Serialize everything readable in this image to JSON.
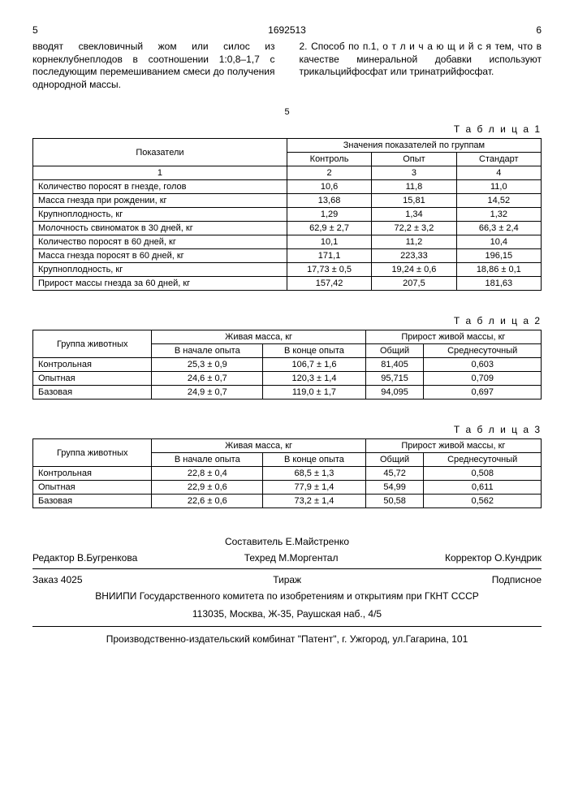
{
  "header": {
    "page_left": "5",
    "doc_id": "1692513",
    "page_right": "6",
    "mid_num": "5"
  },
  "paragraphs": {
    "left": "вводят свекловичный жом или силос из корнеклубнеплодов в соотношении 1:0,8–1,7 с последующим перемешиванием смеси до получения однородной массы.",
    "right": "2. Способ по п.1, о т л и ч а ю щ и й с я тем, что в качестве минеральной добавки используют трикальцийфосфат или тринатрийфосфат."
  },
  "table1": {
    "label": "Т а б л и ц а 1",
    "h1": "Показатели",
    "h2": "Значения показателей по группам",
    "cols": [
      "Контроль",
      "Опыт",
      "Стандарт"
    ],
    "numrow": [
      "1",
      "2",
      "3",
      "4"
    ],
    "rows": [
      [
        "Количество поросят в гнезде, голов",
        "10,6",
        "11,8",
        "11,0"
      ],
      [
        "Масса гнезда при рождении, кг",
        "13,68",
        "15,81",
        "14,52"
      ],
      [
        "Крупноплодность, кг",
        "1,29",
        "1,34",
        "1,32"
      ],
      [
        "Молочность свиноматок в 30 дней, кг",
        "62,9 ± 2,7",
        "72,2 ± 3,2",
        "66,3 ± 2,4"
      ],
      [
        "Количество поросят в 60 дней, кг",
        "10,1",
        "11,2",
        "10,4"
      ],
      [
        "Масса гнезда поросят в 60 дней, кг",
        "171,1",
        "223,33",
        "196,15"
      ],
      [
        "Крупноплодность, кг",
        "17,73 ± 0,5",
        "19,24 ± 0,6",
        "18,86 ± 0,1"
      ],
      [
        "Прирост массы гнезда за 60 дней, кг",
        "157,42",
        "207,5",
        "181,63"
      ]
    ]
  },
  "table2": {
    "label": "Т а б л и ц а 2",
    "h1": "Группа животных",
    "h2": "Живая масса, кг",
    "h3": "Прирост живой массы, кг",
    "sub": [
      "В начале опыта",
      "В конце опыта",
      "Общий",
      "Среднесуточный"
    ],
    "rows": [
      [
        "Контрольная",
        "25,3 ± 0,9",
        "106,7 ± 1,6",
        "81,405",
        "0,603"
      ],
      [
        "Опытная",
        "24,6 ± 0,7",
        "120,3 ± 1,4",
        "95,715",
        "0,709"
      ],
      [
        "Базовая",
        "24,9 ± 0,7",
        "119,0 ± 1,7",
        "94,095",
        "0,697"
      ]
    ]
  },
  "table3": {
    "label": "Т а б л и ц а 3",
    "h1": "Группа животных",
    "h2": "Живая масса, кг",
    "h3": "Прирост живой массы, кг",
    "sub": [
      "В начале опыта",
      "В конце опыта",
      "Общий",
      "Среднесуточный"
    ],
    "rows": [
      [
        "Контрольная",
        "22,8 ± 0,4",
        "68,5 ± 1,3",
        "45,72",
        "0,508"
      ],
      [
        "Опытная",
        "22,9 ± 0,6",
        "77,9 ± 1,4",
        "54,99",
        "0,611"
      ],
      [
        "Базовая",
        "22,6 ± 0,6",
        "73,2 ± 1,4",
        "50,58",
        "0,562"
      ]
    ]
  },
  "footer": {
    "compiler": "Составитель  Е.Майстренко",
    "editor": "Редактор  В.Бугренкова",
    "tech": "Техред М.Моргентал",
    "corrector": "Корректор  О.Кундрик",
    "order": "Заказ 4025",
    "circulation": "Тираж",
    "subscribe": "Подписное",
    "org": "ВНИИПИ Государственного комитета по изобретениям и открытиям при ГКНТ СССР",
    "address": "113035, Москва, Ж-35, Раушская наб., 4/5",
    "publisher": "Производственно-издательский комбинат \"Патент\", г. Ужгород, ул.Гагарина, 101"
  }
}
